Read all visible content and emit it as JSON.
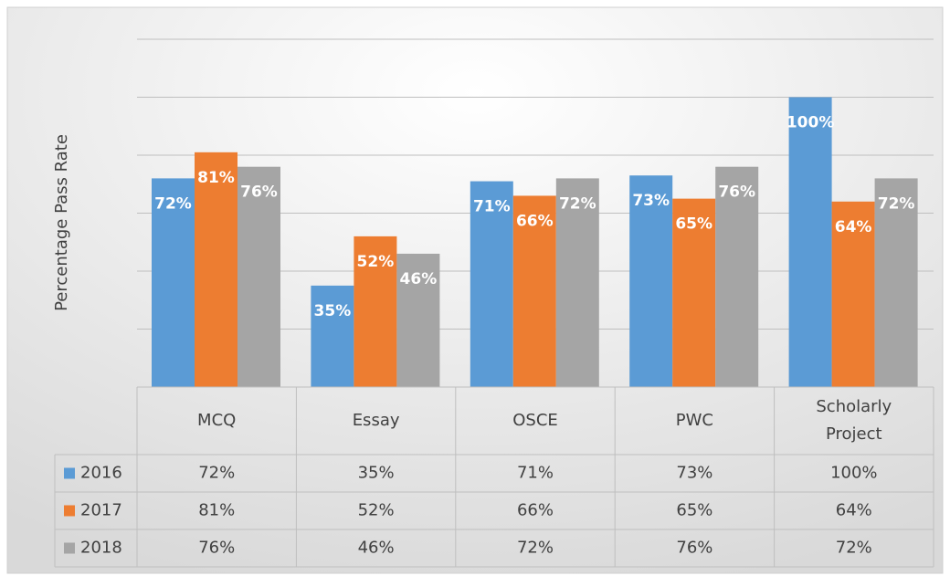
{
  "chart_data": {
    "type": "bar",
    "y_label": "Percentage Pass Rate",
    "categories": [
      "MCQ",
      "Essay",
      "OSCE",
      "PWC",
      "Scholarly Project"
    ],
    "series": [
      {
        "name": "2016",
        "color": "#5b9bd5",
        "values": [
          72,
          35,
          71,
          73,
          100
        ],
        "value_labels": [
          "72%",
          "35%",
          "71%",
          "73%",
          "100%"
        ]
      },
      {
        "name": "2017",
        "color": "#ed7d31",
        "values": [
          81,
          52,
          66,
          65,
          64
        ],
        "value_labels": [
          "81%",
          "52%",
          "66%",
          "65%",
          "64%"
        ]
      },
      {
        "name": "2018",
        "color": "#a5a5a5",
        "values": [
          76,
          46,
          72,
          76,
          72
        ],
        "value_labels": [
          "76%",
          "46%",
          "72%",
          "76%",
          "72%"
        ]
      }
    ],
    "ylim": [
      0,
      120
    ],
    "yticks": [
      0,
      20,
      40,
      60,
      80,
      100,
      120
    ],
    "grid": true,
    "data_table": true
  }
}
